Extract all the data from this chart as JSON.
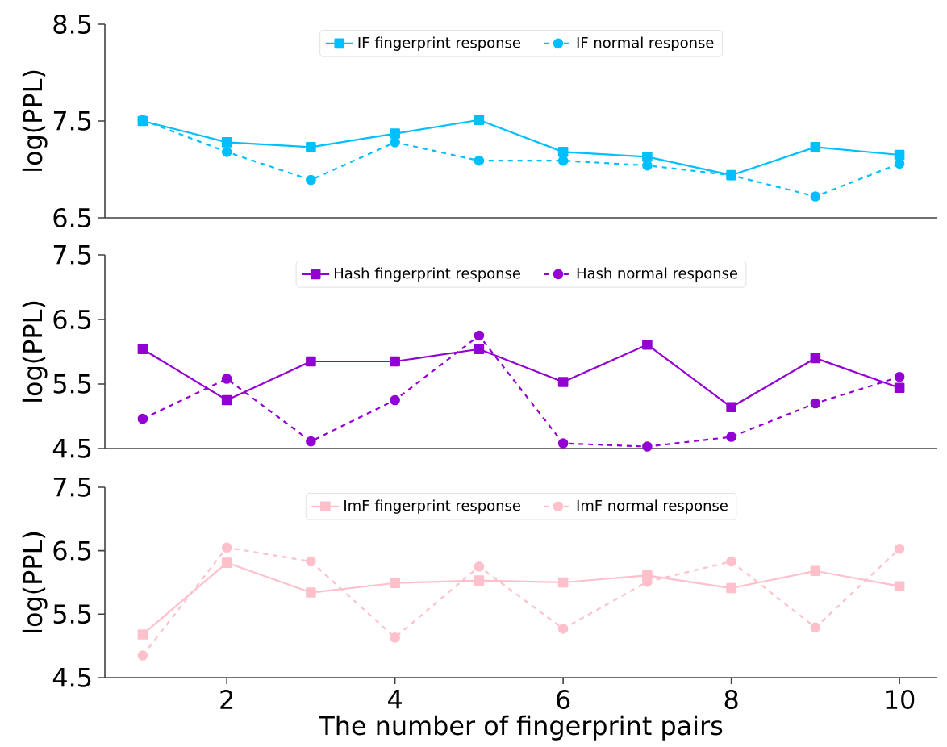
{
  "chart_data": [
    {
      "type": "line",
      "ylabel": "log(PPL)",
      "x": [
        1,
        2,
        3,
        4,
        5,
        6,
        7,
        8,
        9,
        10
      ],
      "xlim": [
        0.55,
        10.45
      ],
      "ylim": [
        6.5,
        8.5
      ],
      "yticks": [
        6.5,
        7.5,
        8.5
      ],
      "tick_labels": "y",
      "legend": "top",
      "grid": false,
      "series": [
        {
          "name": "IF fingerprint response",
          "color": "#00bfff",
          "marker": "square",
          "line_style": "solid",
          "values": [
            7.5,
            7.28,
            7.23,
            7.37,
            7.51,
            7.18,
            7.13,
            6.94,
            7.23,
            7.15
          ]
        },
        {
          "name": "IF normal response",
          "color": "#00bfff",
          "marker": "circle",
          "line_style": "dashed",
          "values": [
            7.51,
            7.18,
            6.89,
            7.28,
            7.09,
            7.09,
            7.04,
            6.94,
            6.72,
            7.06
          ]
        }
      ]
    },
    {
      "type": "line",
      "ylabel": "log(PPL)",
      "x": [
        1,
        2,
        3,
        4,
        5,
        6,
        7,
        8,
        9,
        10
      ],
      "xlim": [
        0.55,
        10.45
      ],
      "ylim": [
        4.5,
        7.5
      ],
      "yticks": [
        4.5,
        5.5,
        6.5,
        7.5
      ],
      "tick_labels": "y",
      "legend": "top",
      "grid": false,
      "series": [
        {
          "name": "Hash fingerprint response",
          "color": "#9400d3",
          "marker": "square",
          "line_style": "solid",
          "values": [
            6.04,
            5.25,
            5.85,
            5.85,
            6.04,
            5.53,
            6.11,
            5.14,
            5.9,
            5.44
          ]
        },
        {
          "name": "Hash normal response",
          "color": "#9400d3",
          "marker": "circle",
          "line_style": "dashed",
          "values": [
            4.96,
            5.58,
            4.61,
            5.25,
            6.25,
            4.58,
            4.53,
            4.68,
            5.2,
            5.61
          ]
        }
      ]
    },
    {
      "type": "line",
      "ylabel": "log(PPL)",
      "xlabel": "The number of fingerprint pairs",
      "x": [
        1,
        2,
        3,
        4,
        5,
        6,
        7,
        8,
        9,
        10
      ],
      "xlim": [
        0.55,
        10.45
      ],
      "xticks": [
        2,
        4,
        6,
        8,
        10
      ],
      "ylim": [
        4.5,
        7.5
      ],
      "yticks": [
        4.5,
        5.5,
        6.5,
        7.5
      ],
      "legend": "top",
      "grid": false,
      "series": [
        {
          "name": "ImF fingerprint response",
          "color": "#ffc0cb",
          "marker": "square",
          "line_style": "solid",
          "values": [
            5.18,
            6.31,
            5.84,
            5.99,
            6.03,
            6.0,
            6.11,
            5.91,
            6.18,
            5.94
          ]
        },
        {
          "name": "ImF normal response",
          "color": "#ffc0cb",
          "marker": "circle",
          "line_style": "dashed",
          "values": [
            4.85,
            6.55,
            6.33,
            5.13,
            6.25,
            5.27,
            6.01,
            6.33,
            5.29,
            6.53
          ]
        }
      ]
    }
  ]
}
